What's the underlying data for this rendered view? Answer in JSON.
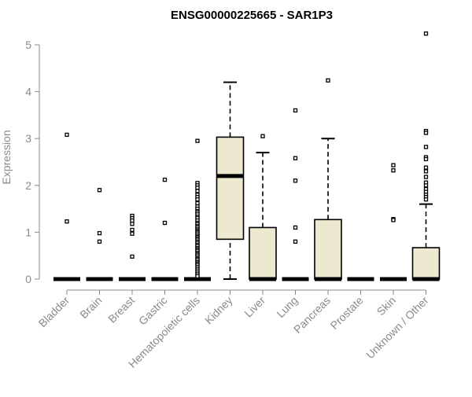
{
  "chart_data": {
    "type": "box",
    "title": "ENSG00000225665 - SAR1P3",
    "xlabel": "",
    "ylabel": "Expression",
    "ylim": [
      0,
      5.3
    ],
    "yticks": [
      "0",
      "1",
      "2",
      "3",
      "4",
      "5"
    ],
    "grid": false,
    "box_fill": "#ede8d0",
    "categories": [
      "Bladder",
      "Brain",
      "Breast",
      "Gastric",
      "Hematopoietic cells",
      "Kidney",
      "Liver",
      "Lung",
      "Pancreas",
      "Prostate",
      "Skin",
      "Unknown / Other"
    ],
    "boxes": [
      {
        "min": 0,
        "q1": 0,
        "median": 0,
        "q3": 0,
        "max": 0,
        "outliers": [
          3.08,
          1.23
        ]
      },
      {
        "min": 0,
        "q1": 0,
        "median": 0,
        "q3": 0,
        "max": 0,
        "outliers": [
          1.9,
          0.98,
          0.8
        ]
      },
      {
        "min": 0,
        "q1": 0,
        "median": 0,
        "q3": 0,
        "max": 0,
        "outliers": [
          1.35,
          1.3,
          1.25,
          1.18,
          1.05,
          0.97,
          0.48
        ]
      },
      {
        "min": 0,
        "q1": 0,
        "median": 0,
        "q3": 0,
        "max": 0,
        "outliers": [
          2.12,
          1.2
        ]
      },
      {
        "min": 0,
        "q1": 0,
        "median": 0,
        "q3": 0,
        "max": 0,
        "outliers": [
          2.95,
          2.05,
          2.0,
          1.95,
          1.88,
          1.8,
          1.75,
          1.7,
          1.62,
          1.55,
          1.5,
          1.45,
          1.42,
          1.38,
          1.33,
          1.3,
          1.25,
          1.2,
          1.17,
          1.13,
          1.1,
          1.06,
          1.03,
          1.0,
          0.97,
          0.93,
          0.9,
          0.87,
          0.84,
          0.8,
          0.77,
          0.73,
          0.7,
          0.66,
          0.63,
          0.6,
          0.56,
          0.53,
          0.5,
          0.46,
          0.43,
          0.4,
          0.36,
          0.33,
          0.3,
          0.26,
          0.22,
          0.18,
          0.14,
          0.1,
          0.06
        ]
      },
      {
        "min": 0,
        "q1": 0.85,
        "median": 2.2,
        "q3": 3.03,
        "max": 4.2,
        "outliers": []
      },
      {
        "min": 0,
        "q1": 0,
        "median": 0,
        "q3": 1.1,
        "max": 2.7,
        "outliers": [
          3.05
        ]
      },
      {
        "min": 0,
        "q1": 0,
        "median": 0,
        "q3": 0,
        "max": 0,
        "outliers": [
          3.6,
          2.58,
          2.1,
          1.1,
          0.8
        ]
      },
      {
        "min": 0,
        "q1": 0,
        "median": 0,
        "q3": 1.27,
        "max": 3.0,
        "outliers": [
          4.24
        ]
      },
      {
        "min": 0,
        "q1": 0,
        "median": 0,
        "q3": 0,
        "max": 0,
        "outliers": []
      },
      {
        "min": 0,
        "q1": 0,
        "median": 0,
        "q3": 0,
        "max": 0,
        "outliers": [
          2.43,
          2.32,
          1.28,
          1.26
        ]
      },
      {
        "min": 0,
        "q1": 0,
        "median": 0,
        "q3": 0.67,
        "max": 1.6,
        "outliers": [
          5.24,
          3.16,
          3.12,
          2.82,
          2.6,
          2.56,
          2.38,
          2.3,
          2.18,
          2.06,
          2.0,
          1.92,
          1.86,
          1.8,
          1.75,
          1.7
        ]
      }
    ]
  }
}
